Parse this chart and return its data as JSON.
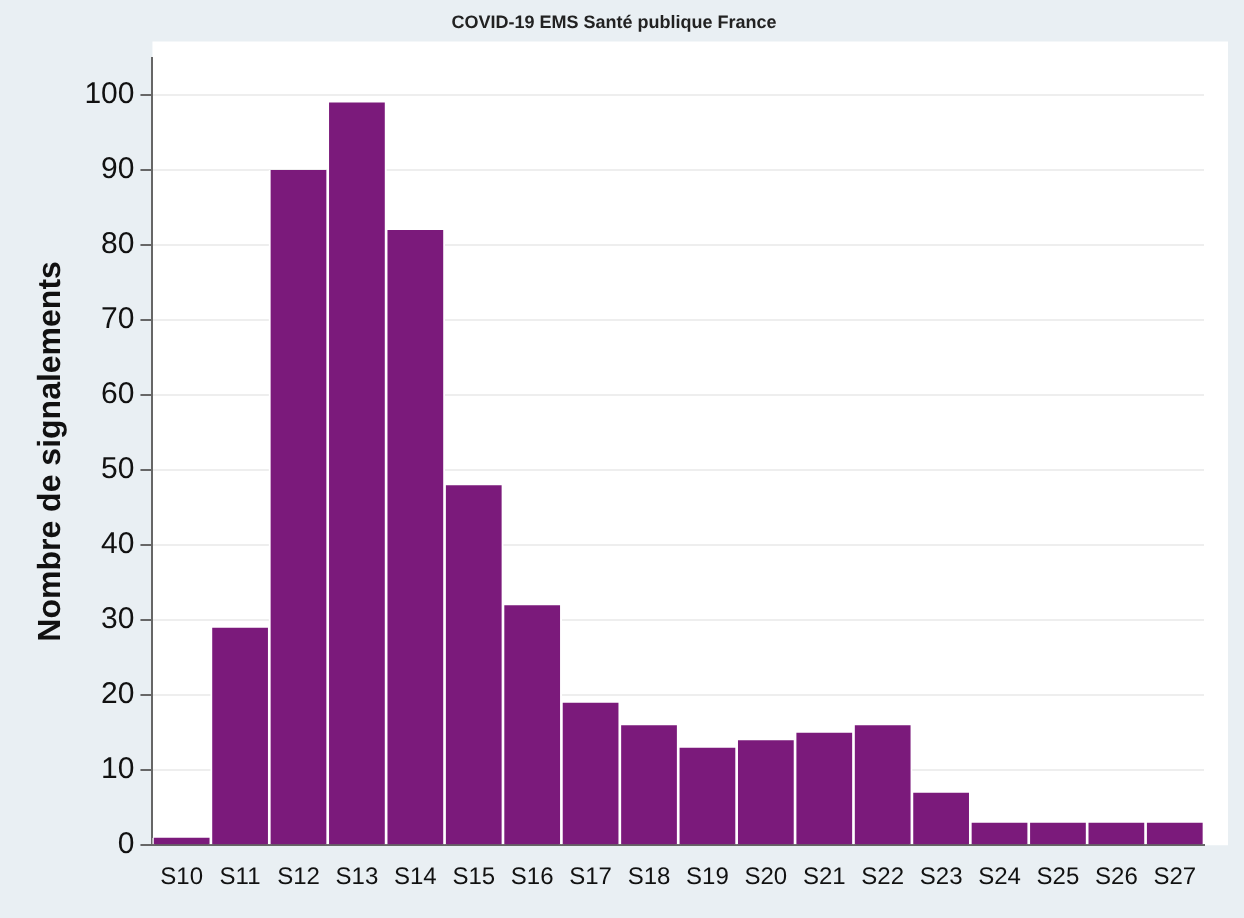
{
  "chart_data": {
    "type": "bar",
    "title": "COVID-19 EMS Santé publique France",
    "ylabel": "Nombre de signalements",
    "categories": [
      "S10",
      "S11",
      "S12",
      "S13",
      "S14",
      "S15",
      "S16",
      "S17",
      "S18",
      "S19",
      "S20",
      "S21",
      "S22",
      "S23",
      "S24",
      "S25",
      "S26",
      "S27"
    ],
    "values": [
      1,
      29,
      90,
      99,
      82,
      48,
      32,
      19,
      16,
      13,
      14,
      15,
      16,
      7,
      3,
      3,
      3,
      3
    ],
    "color": "#7b1a7b",
    "ylim": [
      0,
      105
    ],
    "yticks": [
      0,
      10,
      20,
      30,
      40,
      50,
      60,
      70,
      80,
      90,
      100
    ],
    "grid": "y",
    "legend": false
  }
}
